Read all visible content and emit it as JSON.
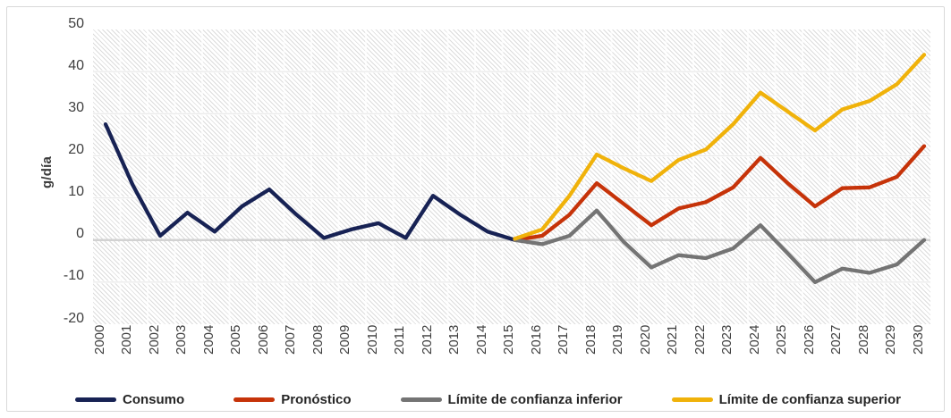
{
  "chart_data": {
    "type": "line",
    "title": "",
    "xlabel": "",
    "ylabel": "g/día",
    "ylim": [
      -20,
      50
    ],
    "ytick_step": 10,
    "yticks": [
      50,
      40,
      30,
      20,
      10,
      0,
      -10,
      -20
    ],
    "x": [
      2000,
      2001,
      2002,
      2003,
      2004,
      2005,
      2006,
      2007,
      2008,
      2009,
      2010,
      2011,
      2012,
      2013,
      2014,
      2015,
      2016,
      2017,
      2018,
      2019,
      2020,
      2021,
      2022,
      2023,
      2024,
      2025,
      2026,
      2027,
      2028,
      2029,
      2030
    ],
    "grid": true,
    "legend_position": "bottom",
    "plot_background": "light-diagonal-hatch",
    "series": [
      {
        "name": "Consumo",
        "color": "#172254",
        "x": [
          2000,
          2001,
          2002,
          2003,
          2004,
          2005,
          2006,
          2007,
          2008,
          2009,
          2010,
          2011,
          2012,
          2013,
          2014,
          2015
        ],
        "values": [
          27.5,
          13,
          1,
          6.5,
          2,
          8,
          12,
          6,
          0.5,
          2.5,
          4,
          0.5,
          10.5,
          6,
          2,
          0
        ]
      },
      {
        "name": "Pronóstico",
        "color": "#c63309",
        "x": [
          2015,
          2016,
          2017,
          2018,
          2019,
          2020,
          2021,
          2022,
          2023,
          2024,
          2025,
          2026,
          2027,
          2028,
          2029,
          2030
        ],
        "values": [
          0,
          1,
          6,
          13.5,
          8.5,
          3.5,
          7.5,
          9,
          12.5,
          19.5,
          13.5,
          8,
          12.3,
          12.5,
          15,
          22.3
        ]
      },
      {
        "name": "Límite de confianza inferior",
        "color": "#747474",
        "x": [
          2015,
          2016,
          2017,
          2018,
          2019,
          2020,
          2021,
          2022,
          2023,
          2024,
          2025,
          2026,
          2027,
          2028,
          2029,
          2030
        ],
        "values": [
          0,
          -1,
          1,
          7,
          -0.5,
          -6.5,
          -3.6,
          -4.3,
          -2,
          3.5,
          -3.2,
          -10,
          -6.8,
          -7.8,
          -5.8,
          0
        ]
      },
      {
        "name": "Límite de confianza superior",
        "color": "#f0b20a",
        "x": [
          2015,
          2016,
          2017,
          2018,
          2019,
          2020,
          2021,
          2022,
          2023,
          2024,
          2025,
          2026,
          2027,
          2028,
          2029,
          2030
        ],
        "values": [
          0.3,
          2.5,
          10.5,
          20.3,
          17,
          14,
          19,
          21.5,
          27.5,
          35,
          30.5,
          26,
          31,
          33,
          37,
          44
        ]
      }
    ],
    "colors": {
      "grid_minor": "#ffffff",
      "grid_major": "#e4e4e4",
      "zero_line": "#d2d2d2",
      "hatch_stripe": "#dcdcdc",
      "frame_border": "#d9d9d9",
      "tick_text": "#3e3e3e",
      "legend_text": "#262626"
    }
  }
}
